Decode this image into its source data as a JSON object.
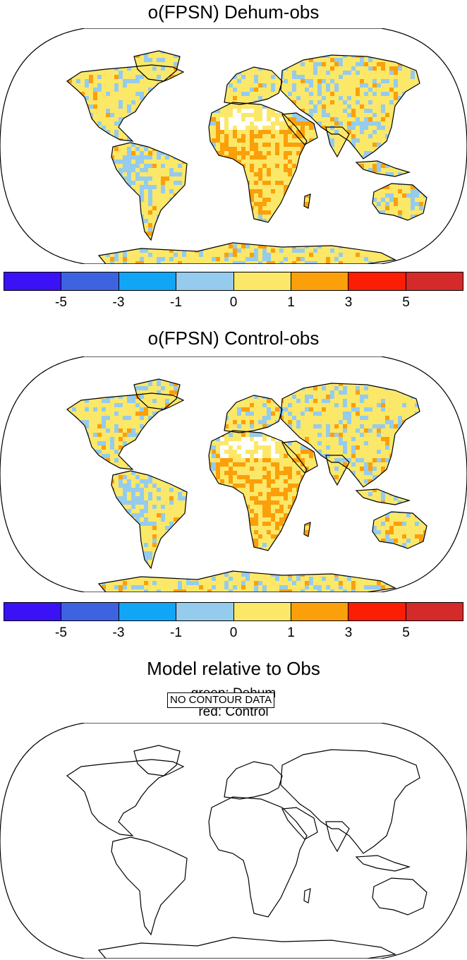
{
  "panels": [
    {
      "title": "o(FPSN) Dehum-obs"
    },
    {
      "title": "o(FPSN) Control-obs"
    },
    {
      "title": "Model relative to Obs",
      "subtitle_lines": [
        "green: Dehum",
        "red: Control"
      ],
      "message": "NO CONTOUR DATA"
    }
  ],
  "colorbar": {
    "colors": [
      "#3b12f5",
      "#3d63e0",
      "#11a5f5",
      "#95cbed",
      "#fbe869",
      "#fb9f0a",
      "#fc1d05",
      "#d42a2a"
    ],
    "labels": [
      "-5",
      "-3",
      "-1",
      "0",
      "1",
      "3",
      "5"
    ]
  },
  "map_colors": {
    "ocean": "#ffffff",
    "outline": "#000000",
    "negative_small": "#95cbed",
    "positive_small": "#fbe869",
    "positive_medium": "#fb9f0a"
  }
}
